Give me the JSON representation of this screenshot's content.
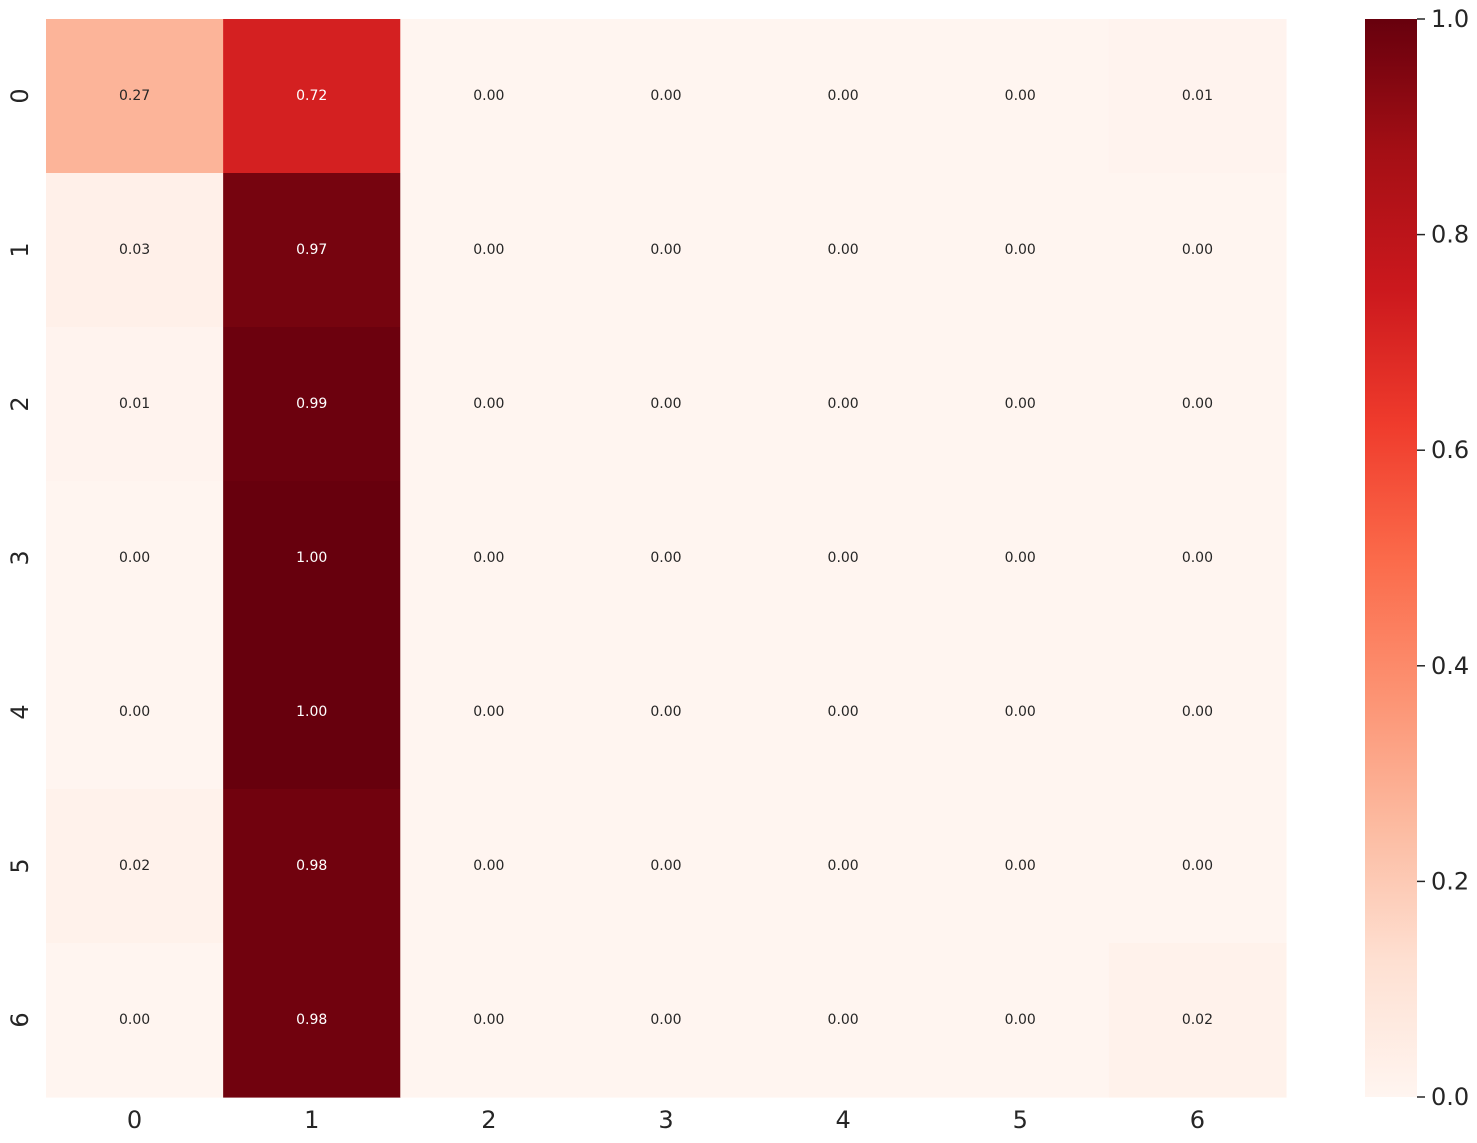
{
  "chart_data": {
    "type": "heatmap",
    "title": "",
    "xlabel": "",
    "ylabel": "",
    "x_categories": [
      "0",
      "1",
      "2",
      "3",
      "4",
      "5",
      "6"
    ],
    "y_categories": [
      "0",
      "1",
      "2",
      "3",
      "4",
      "5",
      "6"
    ],
    "values": [
      [
        0.27,
        0.72,
        0.0,
        0.0,
        0.0,
        0.0,
        0.01
      ],
      [
        0.03,
        0.97,
        0.0,
        0.0,
        0.0,
        0.0,
        0.0
      ],
      [
        0.01,
        0.99,
        0.0,
        0.0,
        0.0,
        0.0,
        0.0
      ],
      [
        0.0,
        1.0,
        0.0,
        0.0,
        0.0,
        0.0,
        0.0
      ],
      [
        0.0,
        1.0,
        0.0,
        0.0,
        0.0,
        0.0,
        0.0
      ],
      [
        0.02,
        0.98,
        0.0,
        0.0,
        0.0,
        0.0,
        0.0
      ],
      [
        0.0,
        0.98,
        0.0,
        0.0,
        0.0,
        0.0,
        0.02
      ]
    ],
    "value_format": "0.00",
    "annotations": true,
    "colormap": "Reds",
    "colorbar": {
      "range": [
        0.0,
        1.0
      ],
      "ticks": [
        "0.0",
        "0.2",
        "0.4",
        "0.6",
        "0.8",
        "1.0"
      ],
      "position": "right"
    },
    "grid": false
  }
}
